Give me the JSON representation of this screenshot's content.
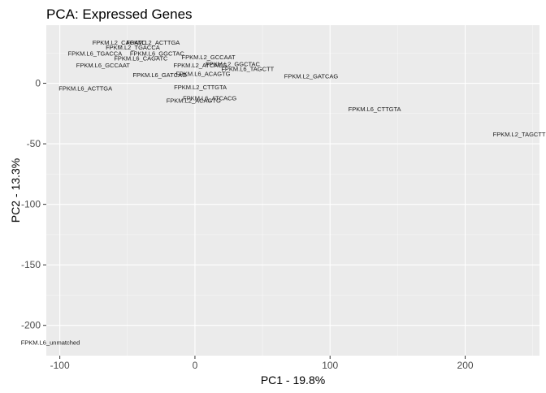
{
  "chart_data": {
    "type": "scatter",
    "title": "PCA: Expressed Genes",
    "xlabel": "PC1 - 19.8%",
    "ylabel": "PC2 - 13.3%",
    "xlim": [
      -110,
      255
    ],
    "ylim": [
      -225,
      48
    ],
    "xticks": [
      -100,
      0,
      100,
      200
    ],
    "yticks": [
      0,
      -50,
      -100,
      -150,
      -200
    ],
    "xtick_labels": [
      "-100",
      "0",
      "100",
      "200"
    ],
    "ytick_labels": [
      "0",
      "-50",
      "-100",
      "-150",
      "-200"
    ],
    "grid": true,
    "points": [
      {
        "label": "FPKM.L2_CAGATC",
        "x": -56,
        "y": 34
      },
      {
        "label": "FPKM.L2_ACTTGA",
        "x": -31,
        "y": 34
      },
      {
        "label": "FPKM.L2_TGACCA",
        "x": -46,
        "y": 30
      },
      {
        "label": "FPKM.L6_TGACCA",
        "x": -74,
        "y": 25
      },
      {
        "label": "FPKM.L6_GGCTAC",
        "x": -28,
        "y": 25
      },
      {
        "label": "FPKM.L6_CAGATC",
        "x": -40,
        "y": 21
      },
      {
        "label": "FPKM.L2_GCCAAT",
        "x": 10,
        "y": 22
      },
      {
        "label": "FPKM.L2_GGCTAC",
        "x": 28,
        "y": 16
      },
      {
        "label": "FPKM.L2_ATCACG",
        "x": 4,
        "y": 15
      },
      {
        "label": "FPKM.L6_TAGCTT",
        "x": 39,
        "y": 12
      },
      {
        "label": "FPKM.L6_GCCAAT",
        "x": -68,
        "y": 15
      },
      {
        "label": "FPKM.L6_GATCAG",
        "x": -26,
        "y": 7
      },
      {
        "label": "FPKM.L6_ACAGTG",
        "x": 6,
        "y": 8
      },
      {
        "label": "FPKM.L2_GATCAG",
        "x": 86,
        "y": 6
      },
      {
        "label": "FPKM.L6_ACTTGA",
        "x": -81,
        "y": -4
      },
      {
        "label": "FPKM.L2_CTTGTA",
        "x": 4,
        "y": -3
      },
      {
        "label": "FPKM.L6_ATCACG",
        "x": 11,
        "y": -12
      },
      {
        "label": "FPKM.L2_ACAGTG",
        "x": -1,
        "y": -14
      },
      {
        "label": "FPKM.L6_CTTGTA",
        "x": 133,
        "y": -21
      },
      {
        "label": "FPKM.L2_TAGCTT",
        "x": 240,
        "y": -42
      },
      {
        "label": "FPKM.L6_unmatched",
        "x": -107,
        "y": -214
      }
    ]
  }
}
